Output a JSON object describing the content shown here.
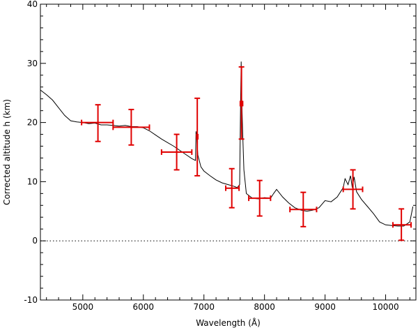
{
  "chart_data": {
    "type": "line",
    "xlabel": "Wavelength (Å)",
    "ylabel": "Corrected altitude h (km)",
    "xlim": [
      4300,
      10500
    ],
    "ylim": [
      -10,
      40
    ],
    "x_ticks": [
      5000,
      6000,
      7000,
      8000,
      9000,
      10000
    ],
    "y_ticks": [
      -10,
      0,
      10,
      20,
      30,
      40
    ],
    "x_tick_labels": [
      "5000",
      "6000",
      "7000",
      "8000",
      "9000",
      "10000"
    ],
    "y_tick_labels": [
      "-10",
      "0",
      "10",
      "20",
      "30",
      "40"
    ],
    "grid": false,
    "zero_line": {
      "y": 0,
      "style": "dotted"
    },
    "series": [
      {
        "kind": "spectrum",
        "color": "#000000",
        "points": [
          [
            4300,
            25.5
          ],
          [
            4400,
            24.7
          ],
          [
            4500,
            23.8
          ],
          [
            4600,
            22.5
          ],
          [
            4700,
            21.2
          ],
          [
            4800,
            20.3
          ],
          [
            4900,
            20.1
          ],
          [
            5000,
            20.0
          ],
          [
            5100,
            19.8
          ],
          [
            5200,
            19.9
          ],
          [
            5300,
            19.6
          ],
          [
            5400,
            19.6
          ],
          [
            5500,
            19.5
          ],
          [
            5600,
            19.4
          ],
          [
            5700,
            19.5
          ],
          [
            5800,
            19.3
          ],
          [
            5900,
            19.3
          ],
          [
            6000,
            19.1
          ],
          [
            6100,
            18.6
          ],
          [
            6200,
            17.9
          ],
          [
            6300,
            17.2
          ],
          [
            6400,
            16.6
          ],
          [
            6500,
            16.0
          ],
          [
            6600,
            15.3
          ],
          [
            6700,
            14.6
          ],
          [
            6800,
            13.9
          ],
          [
            6860,
            13.6
          ],
          [
            6870,
            18.5
          ],
          [
            6880,
            17.6
          ],
          [
            6900,
            14.5
          ],
          [
            6950,
            12.5
          ],
          [
            7000,
            11.8
          ],
          [
            7100,
            11.0
          ],
          [
            7200,
            10.3
          ],
          [
            7300,
            9.8
          ],
          [
            7400,
            9.5
          ],
          [
            7500,
            9.2
          ],
          [
            7550,
            9.0
          ],
          [
            7590,
            9.5
          ],
          [
            7605,
            23.0
          ],
          [
            7615,
            30.3
          ],
          [
            7625,
            23.5
          ],
          [
            7640,
            18.0
          ],
          [
            7660,
            12.0
          ],
          [
            7700,
            8.0
          ],
          [
            7800,
            7.2
          ],
          [
            7900,
            7.1
          ],
          [
            8000,
            7.3
          ],
          [
            8100,
            7.2
          ],
          [
            8150,
            8.0
          ],
          [
            8200,
            8.7
          ],
          [
            8300,
            7.4
          ],
          [
            8400,
            6.4
          ],
          [
            8500,
            5.6
          ],
          [
            8600,
            5.2
          ],
          [
            8700,
            5.0
          ],
          [
            8800,
            5.2
          ],
          [
            8900,
            5.6
          ],
          [
            9000,
            6.8
          ],
          [
            9100,
            6.6
          ],
          [
            9200,
            7.4
          ],
          [
            9300,
            9.0
          ],
          [
            9330,
            10.5
          ],
          [
            9380,
            9.5
          ],
          [
            9420,
            11.0
          ],
          [
            9450,
            9.0
          ],
          [
            9480,
            10.8
          ],
          [
            9520,
            8.3
          ],
          [
            9600,
            7.0
          ],
          [
            9700,
            5.8
          ],
          [
            9800,
            4.6
          ],
          [
            9900,
            3.2
          ],
          [
            10000,
            2.7
          ],
          [
            10100,
            2.6
          ],
          [
            10200,
            2.5
          ],
          [
            10300,
            2.5
          ],
          [
            10400,
            3.2
          ],
          [
            10450,
            5.8
          ]
        ]
      },
      {
        "kind": "error_bars",
        "color": "#e00000",
        "points": [
          {
            "x": 5250,
            "y": 20.0,
            "xerr": [
              4980,
              5500
            ],
            "yerr": [
              16.8,
              23.0
            ]
          },
          {
            "x": 5800,
            "y": 19.2,
            "xerr": [
              5500,
              6100
            ],
            "yerr": [
              16.2,
              22.2
            ]
          },
          {
            "x": 6550,
            "y": 15.0,
            "xerr": [
              6300,
              6800
            ],
            "yerr": [
              12.0,
              18.0
            ]
          },
          {
            "x": 6890,
            "y": 17.6,
            "xerr": [
              6880,
              6900
            ],
            "yerr": [
              11.0,
              24.1
            ]
          },
          {
            "x": 7620,
            "y": 23.2,
            "xerr": [
              7600,
              7640
            ],
            "yerr": [
              17.2,
              29.4
            ]
          },
          {
            "x": 7460,
            "y": 8.9,
            "xerr": [
              7360,
              7580
            ],
            "yerr": [
              5.6,
              12.2
            ]
          },
          {
            "x": 7920,
            "y": 7.2,
            "xerr": [
              7740,
              8100
            ],
            "yerr": [
              4.2,
              10.2
            ]
          },
          {
            "x": 8640,
            "y": 5.3,
            "xerr": [
              8420,
              8860
            ],
            "yerr": [
              2.4,
              8.2
            ]
          },
          {
            "x": 9460,
            "y": 8.7,
            "xerr": [
              9300,
              9620
            ],
            "yerr": [
              5.4,
              12.0
            ]
          },
          {
            "x": 10260,
            "y": 2.7,
            "xerr": [
              10120,
              10420
            ],
            "yerr": [
              0.1,
              5.4
            ]
          }
        ]
      }
    ]
  }
}
